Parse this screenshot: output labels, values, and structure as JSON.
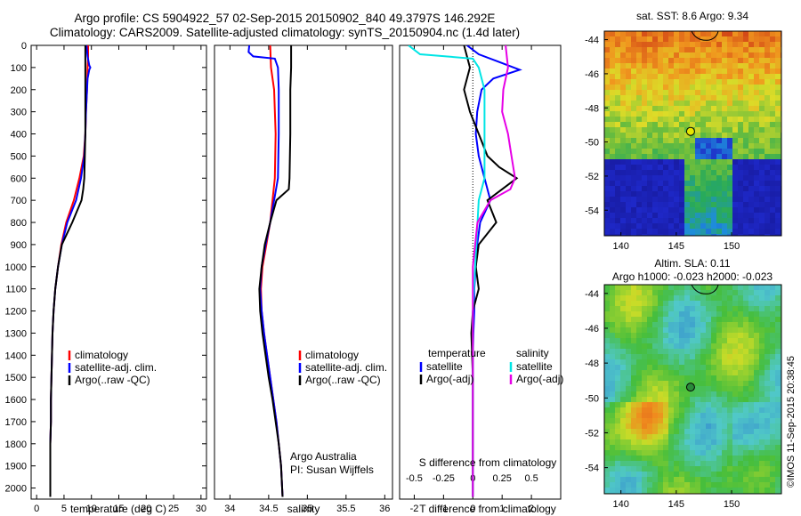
{
  "header": {
    "title_line1": "Argo profile: CS 5904922_57 02-Sep-2015 20150902_840 49.3797S 146.292E",
    "title_line2": "Climatology: CARS2009. Satellite-adjusted climatology: synTS_20150904.nc (1.4d later)"
  },
  "credit": {
    "org": "Argo Australia",
    "pi": "PI: Susan Wijffels",
    "stamp": "©IMOS 11-Sep-2015 20:38:45"
  },
  "colors": {
    "climatology": "#ff0000",
    "satellite": "#0000ff",
    "argo": "#000000",
    "sal_satellite": "#00e5e5",
    "sal_argo": "#e600e6"
  },
  "chart_data": [
    {
      "type": "line",
      "panel": "temperature",
      "xlabel": "temperature (deg C)",
      "ylabel": "",
      "xlim": [
        -1,
        31
      ],
      "ylim": [
        2050,
        0
      ],
      "x_ticks": [
        0,
        5,
        10,
        15,
        20,
        25,
        30
      ],
      "y_ticks": [
        0,
        100,
        200,
        300,
        400,
        500,
        600,
        700,
        800,
        900,
        1000,
        1100,
        1200,
        1300,
        1400,
        1500,
        1600,
        1700,
        1800,
        1900,
        2000
      ],
      "legend": [
        "climatology",
        "satellite-adj. clim.",
        "Argo(..raw -QC)"
      ],
      "series": [
        {
          "name": "climatology",
          "color": "#ff0000",
          "points": [
            [
              9.4,
              0
            ],
            [
              9.4,
              50
            ],
            [
              9.3,
              100
            ],
            [
              9.2,
              200
            ],
            [
              9.0,
              300
            ],
            [
              8.9,
              400
            ],
            [
              8.6,
              500
            ],
            [
              7.8,
              600
            ],
            [
              6.8,
              700
            ],
            [
              5.4,
              800
            ],
            [
              4.5,
              900
            ],
            [
              3.9,
              1000
            ],
            [
              3.4,
              1100
            ],
            [
              3.1,
              1200
            ],
            [
              2.9,
              1300
            ],
            [
              2.8,
              1400
            ],
            [
              2.7,
              1500
            ],
            [
              2.6,
              1600
            ],
            [
              2.6,
              1700
            ],
            [
              2.5,
              1800
            ],
            [
              2.5,
              1900
            ],
            [
              2.5,
              2040
            ]
          ]
        },
        {
          "name": "satellite-adj. clim.",
          "color": "#0000ff",
          "points": [
            [
              9.1,
              0
            ],
            [
              9.3,
              50
            ],
            [
              9.6,
              90
            ],
            [
              9.8,
              100
            ],
            [
              9.6,
              110
            ],
            [
              9.3,
              150
            ],
            [
              9.2,
              200
            ],
            [
              9.0,
              300
            ],
            [
              8.9,
              400
            ],
            [
              8.7,
              500
            ],
            [
              8.1,
              600
            ],
            [
              7.2,
              700
            ],
            [
              5.6,
              800
            ],
            [
              4.6,
              900
            ],
            [
              3.9,
              1000
            ],
            [
              3.4,
              1100
            ],
            [
              3.1,
              1200
            ],
            [
              2.9,
              1300
            ],
            [
              2.8,
              1400
            ],
            [
              2.7,
              1500
            ],
            [
              2.6,
              1600
            ],
            [
              2.6,
              1700
            ],
            [
              2.5,
              1800
            ],
            [
              2.5,
              1900
            ],
            [
              2.5,
              2040
            ]
          ]
        },
        {
          "name": "Argo(..raw -QC)",
          "color": "#000000",
          "points": [
            [
              8.9,
              0
            ],
            [
              8.9,
              50
            ],
            [
              8.9,
              100
            ],
            [
              8.9,
              200
            ],
            [
              8.9,
              300
            ],
            [
              8.9,
              400
            ],
            [
              8.8,
              500
            ],
            [
              8.7,
              600
            ],
            [
              8.5,
              650
            ],
            [
              8.2,
              700
            ],
            [
              6.5,
              800
            ],
            [
              4.6,
              900
            ],
            [
              3.9,
              1000
            ],
            [
              3.4,
              1100
            ],
            [
              3.1,
              1200
            ],
            [
              2.9,
              1300
            ],
            [
              2.8,
              1400
            ],
            [
              2.7,
              1500
            ],
            [
              2.6,
              1600
            ],
            [
              2.6,
              1700
            ],
            [
              2.5,
              1800
            ],
            [
              2.5,
              1900
            ],
            [
              2.5,
              2040
            ]
          ]
        }
      ]
    },
    {
      "type": "line",
      "panel": "salinity",
      "xlabel": "salinity",
      "ylabel": "",
      "xlim": [
        33.8,
        36.1
      ],
      "ylim": [
        2050,
        0
      ],
      "x_ticks": [
        34,
        34.5,
        35,
        35.5,
        36
      ],
      "legend": [
        "climatology",
        "satellite-adj. clim.",
        "Argo(..raw -QC)"
      ],
      "series": [
        {
          "name": "climatology",
          "color": "#ff0000",
          "points": [
            [
              34.52,
              0
            ],
            [
              34.53,
              100
            ],
            [
              34.57,
              200
            ],
            [
              34.59,
              400
            ],
            [
              34.58,
              600
            ],
            [
              34.55,
              700
            ],
            [
              34.52,
              800
            ],
            [
              34.47,
              900
            ],
            [
              34.42,
              1000
            ],
            [
              34.4,
              1100
            ],
            [
              34.41,
              1200
            ],
            [
              34.44,
              1300
            ],
            [
              34.48,
              1400
            ],
            [
              34.52,
              1500
            ],
            [
              34.56,
              1600
            ],
            [
              34.6,
              1700
            ],
            [
              34.63,
              1800
            ],
            [
              34.66,
              1900
            ],
            [
              34.68,
              2040
            ]
          ]
        },
        {
          "name": "satellite-adj. clim.",
          "color": "#0000ff",
          "points": [
            [
              34.25,
              0
            ],
            [
              34.24,
              30
            ],
            [
              34.3,
              50
            ],
            [
              34.58,
              60
            ],
            [
              34.62,
              100
            ],
            [
              34.63,
              200
            ],
            [
              34.63,
              400
            ],
            [
              34.62,
              600
            ],
            [
              34.57,
              700
            ],
            [
              34.52,
              800
            ],
            [
              34.46,
              900
            ],
            [
              34.41,
              1000
            ],
            [
              34.39,
              1100
            ],
            [
              34.41,
              1200
            ],
            [
              34.44,
              1300
            ],
            [
              34.48,
              1400
            ],
            [
              34.52,
              1500
            ],
            [
              34.56,
              1600
            ],
            [
              34.6,
              1700
            ],
            [
              34.63,
              1800
            ],
            [
              34.66,
              1900
            ],
            [
              34.68,
              2040
            ]
          ]
        },
        {
          "name": "Argo(..raw -QC)",
          "color": "#000000",
          "points": [
            [
              34.79,
              0
            ],
            [
              34.79,
              100
            ],
            [
              34.78,
              200
            ],
            [
              34.78,
              400
            ],
            [
              34.77,
              600
            ],
            [
              34.76,
              650
            ],
            [
              34.6,
              700
            ],
            [
              34.52,
              800
            ],
            [
              34.45,
              900
            ],
            [
              34.41,
              1000
            ],
            [
              34.38,
              1100
            ],
            [
              34.39,
              1200
            ],
            [
              34.42,
              1300
            ],
            [
              34.46,
              1400
            ],
            [
              34.5,
              1500
            ],
            [
              34.55,
              1600
            ],
            [
              34.59,
              1700
            ],
            [
              34.63,
              1800
            ],
            [
              34.66,
              1900
            ],
            [
              34.68,
              2040
            ]
          ]
        }
      ]
    },
    {
      "type": "line",
      "panel": "difference",
      "xlabel": "T difference from climatology",
      "x2label": "S difference from climatology",
      "ylabel": "",
      "xlim": [
        -2.5,
        3.0
      ],
      "ylim": [
        2050,
        0
      ],
      "x_ticks": [
        -2,
        -1,
        0,
        1,
        2
      ],
      "x2_ticks": [
        -0.5,
        -0.25,
        0,
        0.25,
        0.5
      ],
      "legend_temperature_title": "temperature",
      "legend_salinity_title": "salinity",
      "legend": [
        "satellite",
        "Argo(-adj)",
        "satellite",
        "Argo(-adj)"
      ],
      "series": [
        {
          "name": "satellite",
          "group": "temperature",
          "color": "#0000ff",
          "points": [
            [
              -0.2,
              0
            ],
            [
              0.2,
              40
            ],
            [
              0.8,
              70
            ],
            [
              1.6,
              110
            ],
            [
              0.7,
              150
            ],
            [
              0.3,
              200
            ],
            [
              0.15,
              300
            ],
            [
              0.1,
              400
            ],
            [
              0.2,
              500
            ],
            [
              0.4,
              600
            ],
            [
              0.6,
              700
            ],
            [
              0.25,
              800
            ],
            [
              0.15,
              900
            ],
            [
              0.1,
              1000
            ],
            [
              0.05,
              1100
            ],
            [
              0.05,
              1200
            ],
            [
              0.02,
              1300
            ],
            [
              0.0,
              1400
            ],
            [
              0.0,
              1600
            ],
            [
              0.0,
              2040
            ]
          ]
        },
        {
          "name": "Argo(-adj)",
          "group": "temperature",
          "color": "#000000",
          "points": [
            [
              -0.3,
              0
            ],
            [
              -0.2,
              50
            ],
            [
              -0.1,
              100
            ],
            [
              -0.3,
              200
            ],
            [
              -0.1,
              300
            ],
            [
              0.2,
              400
            ],
            [
              0.5,
              500
            ],
            [
              0.9,
              550
            ],
            [
              1.5,
              600
            ],
            [
              1.0,
              650
            ],
            [
              0.5,
              700
            ],
            [
              0.8,
              800
            ],
            [
              0.2,
              900
            ],
            [
              0.1,
              1000
            ],
            [
              0.2,
              1100
            ],
            [
              0.0,
              1200
            ],
            [
              -0.05,
              1300
            ],
            [
              0.0,
              1500
            ],
            [
              0.0,
              1700
            ],
            [
              0.0,
              2040
            ]
          ]
        },
        {
          "name": "satellite",
          "group": "salinity",
          "color": "#00e5e5",
          "points": [
            [
              -0.55,
              0
            ],
            [
              -0.45,
              40
            ],
            [
              0.0,
              60
            ],
            [
              0.05,
              100
            ],
            [
              0.1,
              200
            ],
            [
              0.1,
              400
            ],
            [
              0.1,
              600
            ],
            [
              0.05,
              700
            ],
            [
              0.03,
              900
            ],
            [
              0.02,
              1000
            ],
            [
              0.0,
              1200
            ],
            [
              0.0,
              1500
            ],
            [
              0.0,
              2040
            ]
          ]
        },
        {
          "name": "Argo(-adj)",
          "group": "salinity",
          "color": "#e600e6",
          "points": [
            [
              0.28,
              0
            ],
            [
              0.3,
              100
            ],
            [
              0.26,
              200
            ],
            [
              0.25,
              300
            ],
            [
              0.3,
              400
            ],
            [
              0.33,
              500
            ],
            [
              0.36,
              600
            ],
            [
              0.32,
              650
            ],
            [
              0.15,
              700
            ],
            [
              0.04,
              800
            ],
            [
              0.02,
              900
            ],
            [
              0.0,
              1000
            ],
            [
              0.0,
              2040
            ]
          ]
        }
      ]
    },
    {
      "type": "heatmap",
      "panel": "sst_map",
      "title": "sat. SST: 8.6 Argo: 9.34",
      "xlim": [
        138.5,
        154.5
      ],
      "ylim": [
        -55.5,
        -43.5
      ],
      "x_ticks": [
        140,
        145,
        150
      ],
      "y_ticks": [
        -44,
        -46,
        -48,
        -50,
        -52,
        -54
      ],
      "float_position": {
        "lon": 146.292,
        "lat": -49.3797
      }
    },
    {
      "type": "heatmap",
      "panel": "sla_map",
      "title": "Altim. SLA: 0.11",
      "subtitle": "Argo h1000: -0.023 h2000: -0.023",
      "xlim": [
        138.5,
        154.5
      ],
      "ylim": [
        -55.5,
        -43.5
      ],
      "x_ticks": [
        140,
        145,
        150
      ],
      "y_ticks": [
        -44,
        -46,
        -48,
        -50,
        -52,
        -54
      ],
      "float_position": {
        "lon": 146.292,
        "lat": -49.3797
      }
    }
  ]
}
